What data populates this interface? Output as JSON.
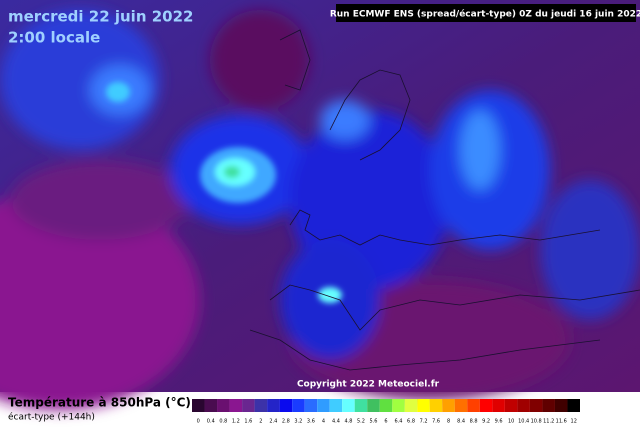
{
  "header": {
    "date": "mercredi 22 juin 2022",
    "time": "2:00 locale",
    "run": "Run ECMWF ENS (spread/écart-type) 0Z du jeudi 16 juin 2022"
  },
  "copyright": "Copyright 2022 Meteociel.fr",
  "legend": {
    "title": "Température à 850hPa (°C)",
    "subtitle": "écart-type  (+144h)",
    "ticks": [
      0,
      0.4,
      0.8,
      1.2,
      1.6,
      2,
      2.4,
      2.8,
      3.2,
      3.6,
      4,
      4.4,
      4.8,
      5.2,
      5.6,
      6,
      6.4,
      6.8,
      7.2,
      7.6,
      8,
      8.4,
      8.8,
      9.2,
      9.6,
      10,
      10.4,
      10.8,
      11.2,
      11.6,
      12
    ],
    "colors": [
      "#2a0630",
      "#4a0c50",
      "#6a1070",
      "#8a1690",
      "#6a2690",
      "#3c32a8",
      "#2424c8",
      "#0a0aee",
      "#1a3cff",
      "#2a6cff",
      "#309cff",
      "#40ccff",
      "#66ffff",
      "#40e0a0",
      "#40c060",
      "#60e040",
      "#a0ff40",
      "#e0ff40",
      "#ffff00",
      "#ffd000",
      "#ffa000",
      "#ff7000",
      "#ff4000",
      "#ff0000",
      "#e00000",
      "#c00000",
      "#a00000",
      "#800000",
      "#600000",
      "#400000",
      "#000000"
    ]
  }
}
